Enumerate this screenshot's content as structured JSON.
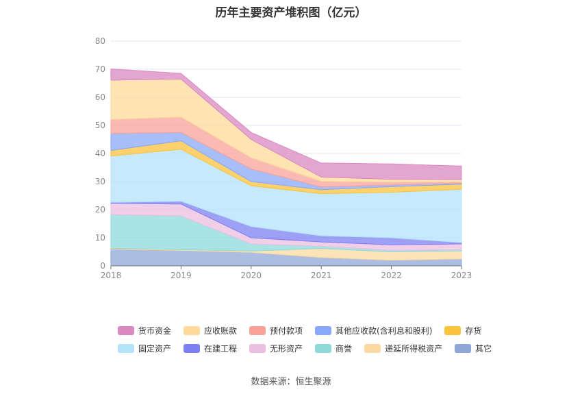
{
  "chart_data": {
    "type": "area",
    "title": "历年主要资产堆积图（亿元）",
    "xlabel": "",
    "ylabel": "",
    "categories": [
      "2018",
      "2019",
      "2020",
      "2021",
      "2022",
      "2023"
    ],
    "ylim": [
      0,
      80
    ],
    "yticks": [
      "0",
      "10",
      "20",
      "30",
      "40",
      "50",
      "60",
      "70",
      "80"
    ],
    "grid": true,
    "legend_position": "bottom",
    "series": [
      {
        "name": "其它",
        "color": "#8fa8d8",
        "values": [
          6.0,
          5.5,
          4.8,
          3.0,
          2.0,
          2.5
        ]
      },
      {
        "name": "递延所得税资产",
        "color": "#fcd9a0",
        "values": [
          0.3,
          0.3,
          0.5,
          3.2,
          3.0,
          2.8
        ]
      },
      {
        "name": "商誉",
        "color": "#8edada",
        "values": [
          12.0,
          12.0,
          2.5,
          0.8,
          0.5,
          0.5
        ]
      },
      {
        "name": "无形资产",
        "color": "#ecbfe0",
        "values": [
          4.0,
          4.2,
          2.2,
          1.5,
          2.0,
          2.0
        ]
      },
      {
        "name": "在建工程",
        "color": "#7c80f0",
        "values": [
          0.3,
          1.0,
          4.0,
          2.2,
          2.5,
          0.5
        ]
      },
      {
        "name": "固定资产",
        "color": "#b3e2fb",
        "values": [
          16.5,
          18.5,
          14.5,
          15.0,
          16.2,
          19.0
        ]
      },
      {
        "name": "存货",
        "color": "#fcc33c",
        "values": [
          2.0,
          3.0,
          1.5,
          1.4,
          2.0,
          1.8
        ]
      },
      {
        "name": "其他应收款(含利息和股利)",
        "color": "#8aa8f8",
        "values": [
          6.0,
          3.0,
          4.5,
          1.0,
          0.6,
          0.4
        ]
      },
      {
        "name": "预付款项",
        "color": "#f9a29a",
        "values": [
          5.0,
          5.5,
          4.0,
          2.0,
          1.0,
          0.4
        ]
      },
      {
        "name": "应收账款",
        "color": "#fdd99a",
        "values": [
          14.0,
          13.5,
          6.5,
          1.5,
          1.0,
          0.8
        ]
      },
      {
        "name": "货币资金",
        "color": "#da88c0",
        "values": [
          4.0,
          2.0,
          2.5,
          5.0,
          5.5,
          4.8
        ]
      }
    ]
  },
  "legend": {
    "row1": [
      {
        "label": "货币资金",
        "color": "#da88c0"
      },
      {
        "label": "应收账款",
        "color": "#fdd99a"
      },
      {
        "label": "预付款项",
        "color": "#f9a29a"
      },
      {
        "label": "其他应收款(含利息和股利)",
        "color": "#8aa8f8"
      },
      {
        "label": "存货",
        "color": "#fcc33c"
      }
    ],
    "row2": [
      {
        "label": "固定资产",
        "color": "#b3e2fb"
      },
      {
        "label": "在建工程",
        "color": "#7c80f0"
      },
      {
        "label": "无形资产",
        "color": "#ecbfe0"
      },
      {
        "label": "商誉",
        "color": "#8edada"
      },
      {
        "label": "递延所得税资产",
        "color": "#fcd9a0"
      },
      {
        "label": "其它",
        "color": "#8fa8d8"
      }
    ]
  },
  "source": "数据来源：恒生聚源"
}
